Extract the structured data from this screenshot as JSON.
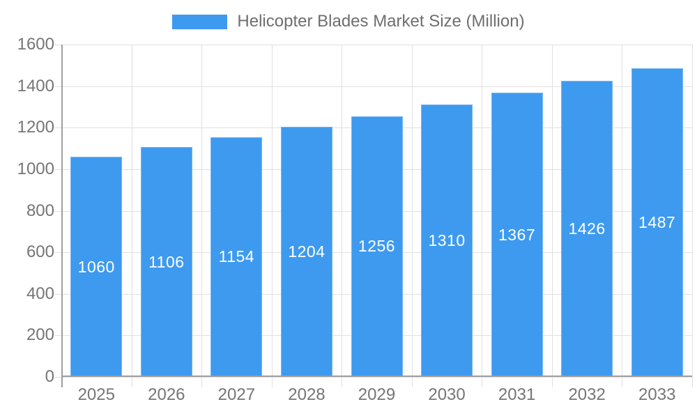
{
  "chart_data": {
    "type": "bar",
    "title": "Helicopter Blades Market Size (Million)",
    "categories": [
      "2025",
      "2026",
      "2027",
      "2028",
      "2029",
      "2030",
      "2031",
      "2032",
      "2033"
    ],
    "values": [
      1060,
      1106,
      1154,
      1204,
      1256,
      1310,
      1367,
      1426,
      1487
    ],
    "xlabel": "",
    "ylabel": "",
    "ylim": [
      0,
      1600
    ],
    "ytick_step": 200,
    "grid": true,
    "legend_position": "top",
    "colors": {
      "bar_fill": "#3E9AEF",
      "bar_value_label": "#ffffff",
      "gridline": "#e0e0e0",
      "axis_line": "#9e9e9e",
      "tick_label": "#757575",
      "legend_text": "#6e6e6e"
    }
  }
}
